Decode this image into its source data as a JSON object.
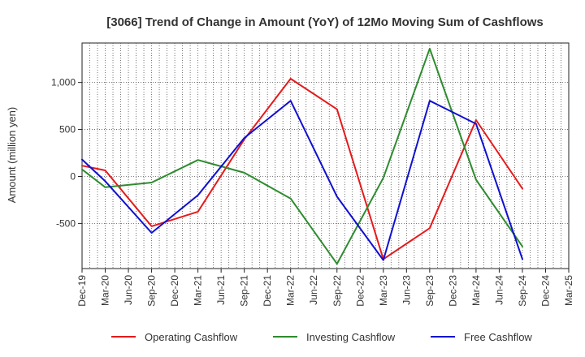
{
  "chart_data": {
    "type": "line",
    "title": "[3066]  Trend of Change in Amount (YoY) of 12Mo Moving Sum of Cashflows",
    "xlabel": "",
    "ylabel": "Amount (million yen)",
    "ylim": [
      -980,
      1420
    ],
    "yticks": [
      {
        "value": 1000,
        "label": "1,000"
      },
      {
        "value": 500,
        "label": "500"
      },
      {
        "value": 0,
        "label": "0"
      },
      {
        "value": -500,
        "label": "-500"
      }
    ],
    "categories": [
      "Dec-19",
      "Mar-20",
      "Jun-20",
      "Sep-20",
      "Dec-20",
      "Mar-21",
      "Jun-21",
      "Sep-21",
      "Dec-21",
      "Mar-22",
      "Jun-22",
      "Sep-22",
      "Dec-22",
      "Mar-23",
      "Jun-23",
      "Sep-23",
      "Dec-23",
      "Mar-24",
      "Jun-24",
      "Sep-24",
      "Dec-24",
      "Mar-25"
    ],
    "grid": true,
    "legend_position": "bottom",
    "series": [
      {
        "name": "Operating Cashflow",
        "color": "#e41a1c",
        "values": [
          115,
          65,
          null,
          -530,
          null,
          -375,
          null,
          395,
          null,
          1040,
          null,
          715,
          null,
          -880,
          null,
          -550,
          null,
          600,
          null,
          -130,
          null,
          null
        ]
      },
      {
        "name": "Investing Cashflow",
        "color": "#2e8b2e",
        "values": [
          75,
          -115,
          null,
          -65,
          null,
          175,
          null,
          40,
          null,
          -235,
          null,
          -930,
          null,
          -15,
          null,
          1360,
          null,
          -35,
          null,
          -745,
          null,
          null
        ]
      },
      {
        "name": "Free Cashflow",
        "color": "#1010d0",
        "values": [
          180,
          -50,
          null,
          -600,
          null,
          -200,
          null,
          410,
          null,
          805,
          null,
          -215,
          null,
          -890,
          null,
          805,
          null,
          560,
          null,
          -880,
          null,
          null
        ]
      }
    ]
  }
}
